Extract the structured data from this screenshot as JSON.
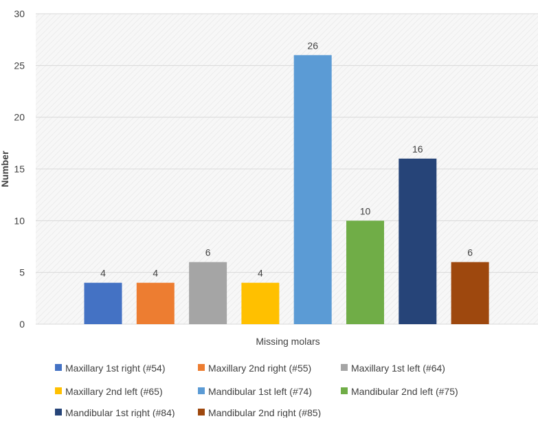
{
  "chart_data": {
    "type": "bar",
    "categories": [
      "Maxillary 1st right (#54)",
      "Maxillary 2nd right (#55)",
      "Maxillary 1st left (#64)",
      "Maxillary 2nd left (#65)",
      "Mandibular 1st left (#74)",
      "Mandibular 2nd left (#75)",
      "Mandibular 1st right (#84)",
      "Mandibular 2nd right (#85)"
    ],
    "values": [
      4,
      4,
      6,
      4,
      26,
      10,
      16,
      6
    ],
    "colors": [
      "#4472c4",
      "#ed7d31",
      "#a5a5a5",
      "#ffc000",
      "#5b9bd5",
      "#70ad47",
      "#264478",
      "#9e480e"
    ],
    "title": "",
    "xlabel": "Missing molars",
    "ylabel": "Number",
    "ylim": [
      0,
      30
    ],
    "yticks": [
      0,
      5,
      10,
      15,
      20,
      25,
      30
    ],
    "grid": true,
    "legend_position": "bottom",
    "data_labels": true
  }
}
